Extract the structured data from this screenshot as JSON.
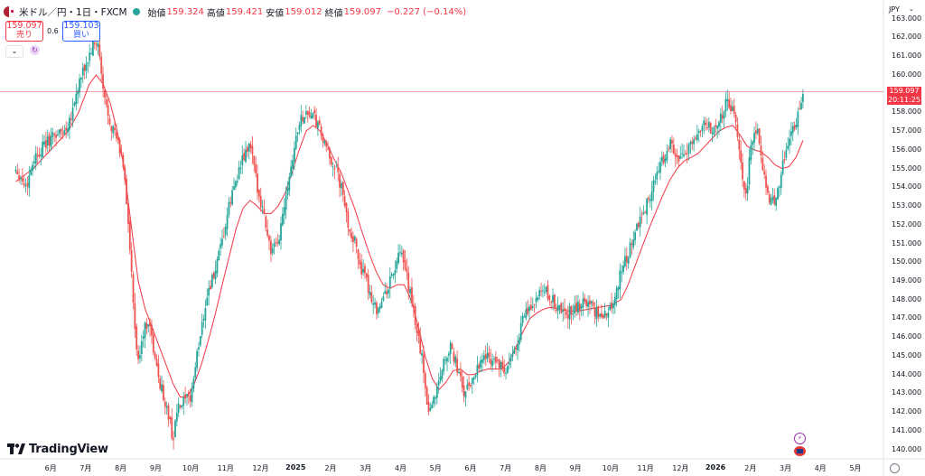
{
  "header": {
    "symbol": "米ドル／円・1日・FXCM",
    "ohlc": [
      {
        "label": "始値",
        "value": "159.324"
      },
      {
        "label": "高値",
        "value": "159.421"
      },
      {
        "label": "安値",
        "value": "159.012"
      },
      {
        "label": "終値",
        "value": "159.097"
      }
    ],
    "change": "−0.227 (−0.14%)"
  },
  "trade": {
    "sell_price": "159.097",
    "sell_label": "売り",
    "spread": "0.6",
    "buy_price": "159.103",
    "buy_label": "買い"
  },
  "axis_currency": "JPY",
  "last_price_tag": {
    "price": "159.097",
    "countdown": "20:11:25"
  },
  "logo": "TradingView",
  "colors": {
    "up": "#26a69a",
    "down": "#ef5350",
    "ma": "#f23645",
    "last_price_line": "#f23645"
  },
  "icons": [
    "flag-icon",
    "refresh-icon",
    "chevron-down-icon",
    "bolt-icon",
    "settings-icon",
    "tradingview-logo-icon"
  ],
  "chart_data": {
    "type": "candlestick",
    "title": "米ドル／円・1日・FXCM",
    "ylim": [
      139.5,
      164.0
    ],
    "y_ticks": [
      "163.000",
      "162.000",
      "161.000",
      "160.000",
      "159.000",
      "158.000",
      "157.000",
      "156.000",
      "155.000",
      "154.000",
      "153.000",
      "152.000",
      "151.000",
      "150.000",
      "149.000",
      "148.000",
      "147.000",
      "146.000",
      "145.000",
      "144.000",
      "143.000",
      "142.000",
      "141.000",
      "140.000"
    ],
    "x_ticks": [
      {
        "label": "6月",
        "t": 0.5
      },
      {
        "label": "7月",
        "t": 1.5
      },
      {
        "label": "8月",
        "t": 2.5
      },
      {
        "label": "9月",
        "t": 3.5
      },
      {
        "label": "10月",
        "t": 4.5
      },
      {
        "label": "11月",
        "t": 5.5
      },
      {
        "label": "12月",
        "t": 6.5
      },
      {
        "label": "2025",
        "t": 7.5,
        "bold": true
      },
      {
        "label": "2月",
        "t": 8.5
      },
      {
        "label": "3月",
        "t": 9.5
      },
      {
        "label": "4月",
        "t": 10.5
      },
      {
        "label": "5月",
        "t": 11.5
      },
      {
        "label": "6月",
        "t": 12.5
      },
      {
        "label": "7月",
        "t": 13.5
      },
      {
        "label": "8月",
        "t": 14.5
      },
      {
        "label": "9月",
        "t": 15.5
      },
      {
        "label": "10月",
        "t": 16.5
      },
      {
        "label": "11月",
        "t": 17.5
      },
      {
        "label": "12月",
        "t": 18.5
      },
      {
        "label": "2026",
        "t": 19.5,
        "bold": true
      },
      {
        "label": "2月",
        "t": 20.5
      },
      {
        "label": "3月",
        "t": 21.5
      },
      {
        "label": "4月",
        "t": 22.5
      },
      {
        "label": "5月",
        "t": 23.5
      }
    ],
    "last_price": 159.097,
    "series_path": [
      [
        -0.5,
        155.0
      ],
      [
        -0.2,
        154.0
      ],
      [
        0.0,
        155.5
      ],
      [
        0.3,
        156.2
      ],
      [
        0.6,
        156.8
      ],
      [
        0.9,
        157.0
      ],
      [
        1.1,
        158.0
      ],
      [
        1.3,
        159.5
      ],
      [
        1.5,
        160.5
      ],
      [
        1.7,
        161.5
      ],
      [
        1.85,
        161.7
      ],
      [
        2.0,
        159.0
      ],
      [
        2.2,
        157.5
      ],
      [
        2.4,
        156.5
      ],
      [
        2.6,
        155.0
      ],
      [
        2.75,
        151.0
      ],
      [
        2.9,
        146.5
      ],
      [
        3.0,
        144.5
      ],
      [
        3.1,
        146.0
      ],
      [
        3.3,
        147.0
      ],
      [
        3.5,
        144.5
      ],
      [
        3.7,
        143.0
      ],
      [
        3.9,
        141.5
      ],
      [
        4.0,
        140.5
      ],
      [
        4.1,
        142.0
      ],
      [
        4.3,
        142.5
      ],
      [
        4.5,
        142.8
      ],
      [
        4.6,
        144.0
      ],
      [
        4.8,
        146.5
      ],
      [
        5.0,
        148.5
      ],
      [
        5.2,
        149.5
      ],
      [
        5.4,
        151.0
      ],
      [
        5.6,
        153.0
      ],
      [
        5.8,
        154.5
      ],
      [
        6.0,
        155.5
      ],
      [
        6.2,
        156.3
      ],
      [
        6.35,
        154.5
      ],
      [
        6.6,
        152.5
      ],
      [
        6.8,
        150.5
      ],
      [
        7.0,
        151.0
      ],
      [
        7.2,
        153.5
      ],
      [
        7.4,
        155.5
      ],
      [
        7.6,
        157.5
      ],
      [
        7.8,
        158.0
      ],
      [
        8.0,
        157.8
      ],
      [
        8.2,
        157.0
      ],
      [
        8.4,
        155.8
      ],
      [
        8.6,
        155.2
      ],
      [
        8.8,
        154.0
      ],
      [
        9.0,
        152.0
      ],
      [
        9.2,
        151.0
      ],
      [
        9.4,
        149.5
      ],
      [
        9.6,
        148.5
      ],
      [
        9.8,
        147.5
      ],
      [
        10.0,
        148.0
      ],
      [
        10.3,
        149.5
      ],
      [
        10.5,
        150.5
      ],
      [
        10.7,
        149.0
      ],
      [
        10.9,
        147.0
      ],
      [
        11.1,
        145.0
      ],
      [
        11.3,
        142.0
      ],
      [
        11.5,
        143.0
      ],
      [
        11.7,
        144.5
      ],
      [
        11.9,
        145.5
      ],
      [
        12.1,
        144.5
      ],
      [
        12.3,
        143.0
      ],
      [
        12.5,
        143.5
      ],
      [
        12.7,
        144.5
      ],
      [
        12.9,
        145.0
      ],
      [
        13.2,
        144.8
      ],
      [
        13.5,
        144.0
      ],
      [
        13.8,
        145.5
      ],
      [
        14.0,
        147.0
      ],
      [
        14.3,
        147.8
      ],
      [
        14.6,
        148.5
      ],
      [
        14.9,
        147.8
      ],
      [
        15.2,
        147.2
      ],
      [
        15.5,
        147.5
      ],
      [
        15.8,
        148.0
      ],
      [
        16.0,
        147.5
      ],
      [
        16.3,
        147.0
      ],
      [
        16.6,
        148.0
      ],
      [
        16.8,
        149.5
      ],
      [
        17.0,
        150.5
      ],
      [
        17.2,
        151.5
      ],
      [
        17.4,
        152.5
      ],
      [
        17.6,
        153.5
      ],
      [
        17.8,
        154.5
      ],
      [
        18.0,
        155.5
      ],
      [
        18.2,
        156.5
      ],
      [
        18.4,
        155.5
      ],
      [
        18.6,
        155.5
      ],
      [
        18.8,
        156.5
      ],
      [
        19.0,
        157.0
      ],
      [
        19.2,
        157.5
      ],
      [
        19.4,
        157.0
      ],
      [
        19.6,
        157.5
      ],
      [
        19.8,
        158.5
      ],
      [
        20.0,
        158.0
      ],
      [
        20.2,
        156.0
      ],
      [
        20.35,
        153.0
      ],
      [
        20.5,
        156.0
      ],
      [
        20.7,
        157.3
      ],
      [
        20.9,
        154.5
      ],
      [
        21.1,
        153.0
      ],
      [
        21.3,
        154.0
      ],
      [
        21.5,
        156.0
      ],
      [
        21.7,
        157.0
      ],
      [
        21.9,
        158.0
      ],
      [
        22.0,
        159.1
      ]
    ],
    "moving_average": [
      [
        -0.5,
        154.3
      ],
      [
        0.0,
        155.0
      ],
      [
        0.5,
        156.0
      ],
      [
        1.0,
        157.0
      ],
      [
        1.3,
        158.0
      ],
      [
        1.6,
        159.5
      ],
      [
        1.8,
        160.0
      ],
      [
        2.0,
        159.5
      ],
      [
        2.2,
        158.5
      ],
      [
        2.4,
        157.0
      ],
      [
        2.6,
        155.0
      ],
      [
        2.8,
        152.0
      ],
      [
        3.0,
        149.0
      ],
      [
        3.2,
        147.5
      ],
      [
        3.4,
        146.5
      ],
      [
        3.6,
        145.5
      ],
      [
        3.8,
        144.5
      ],
      [
        4.0,
        143.5
      ],
      [
        4.2,
        142.8
      ],
      [
        4.4,
        142.8
      ],
      [
        4.6,
        143.5
      ],
      [
        4.8,
        144.5
      ],
      [
        5.0,
        145.8
      ],
      [
        5.2,
        147.2
      ],
      [
        5.4,
        148.8
      ],
      [
        5.6,
        150.3
      ],
      [
        5.8,
        151.8
      ],
      [
        6.0,
        152.9
      ],
      [
        6.2,
        153.3
      ],
      [
        6.4,
        153.0
      ],
      [
        6.6,
        152.6
      ],
      [
        6.8,
        152.6
      ],
      [
        7.0,
        153.0
      ],
      [
        7.2,
        153.7
      ],
      [
        7.4,
        154.8
      ],
      [
        7.6,
        156.0
      ],
      [
        7.8,
        157.0
      ],
      [
        8.0,
        157.3
      ],
      [
        8.2,
        157.0
      ],
      [
        8.4,
        156.3
      ],
      [
        8.6,
        155.5
      ],
      [
        8.8,
        154.8
      ],
      [
        9.0,
        153.8
      ],
      [
        9.2,
        152.8
      ],
      [
        9.4,
        151.6
      ],
      [
        9.6,
        150.5
      ],
      [
        9.8,
        149.5
      ],
      [
        10.0,
        148.8
      ],
      [
        10.2,
        148.6
      ],
      [
        10.4,
        148.8
      ],
      [
        10.6,
        148.8
      ],
      [
        10.8,
        148.0
      ],
      [
        11.0,
        146.6
      ],
      [
        11.2,
        145.0
      ],
      [
        11.4,
        143.8
      ],
      [
        11.6,
        143.2
      ],
      [
        11.8,
        143.6
      ],
      [
        12.0,
        144.2
      ],
      [
        12.2,
        144.3
      ],
      [
        12.4,
        144.0
      ],
      [
        12.6,
        144.0
      ],
      [
        12.8,
        144.2
      ],
      [
        13.0,
        144.3
      ],
      [
        13.2,
        144.3
      ],
      [
        13.4,
        144.3
      ],
      [
        13.6,
        144.7
      ],
      [
        13.8,
        145.5
      ],
      [
        14.0,
        146.3
      ],
      [
        14.2,
        147.0
      ],
      [
        14.4,
        147.3
      ],
      [
        14.6,
        147.5
      ],
      [
        14.8,
        147.6
      ],
      [
        15.0,
        147.5
      ],
      [
        15.3,
        147.4
      ],
      [
        15.6,
        147.4
      ],
      [
        15.9,
        147.5
      ],
      [
        16.2,
        147.6
      ],
      [
        16.5,
        147.7
      ],
      [
        16.8,
        148.0
      ],
      [
        17.0,
        148.8
      ],
      [
        17.2,
        149.8
      ],
      [
        17.4,
        150.8
      ],
      [
        17.6,
        151.8
      ],
      [
        17.8,
        152.7
      ],
      [
        18.0,
        153.6
      ],
      [
        18.2,
        154.4
      ],
      [
        18.4,
        155.0
      ],
      [
        18.6,
        155.4
      ],
      [
        18.8,
        155.6
      ],
      [
        19.0,
        155.8
      ],
      [
        19.2,
        156.2
      ],
      [
        19.4,
        156.6
      ],
      [
        19.6,
        157.0
      ],
      [
        19.8,
        157.2
      ],
      [
        20.0,
        157.3
      ],
      [
        20.2,
        156.8
      ],
      [
        20.4,
        156.2
      ],
      [
        20.6,
        156.0
      ],
      [
        20.8,
        155.9
      ],
      [
        21.0,
        155.6
      ],
      [
        21.2,
        155.2
      ],
      [
        21.4,
        155.0
      ],
      [
        21.6,
        155.1
      ],
      [
        21.8,
        155.6
      ],
      [
        22.0,
        156.5
      ]
    ]
  }
}
